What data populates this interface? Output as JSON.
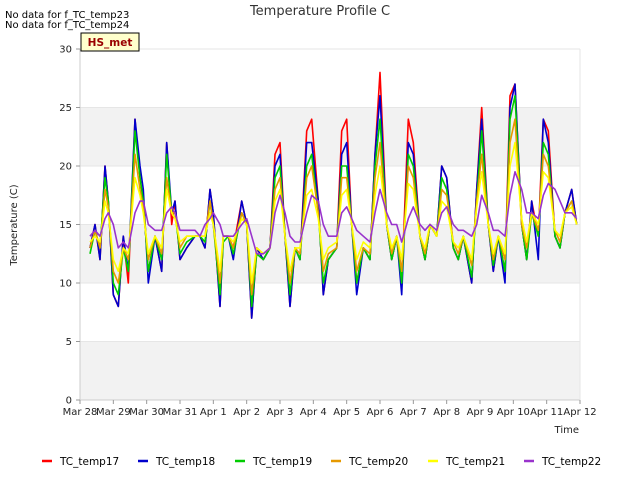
{
  "chart_data": {
    "type": "line",
    "title": "Temperature Profile C",
    "xlabel": "Time",
    "ylabel": "Temperature (C)",
    "ylim": [
      0,
      30
    ],
    "yticks": [
      0,
      5,
      10,
      15,
      20,
      25,
      30
    ],
    "xlim": [
      0,
      15
    ],
    "xticks": [
      {
        "x": 0,
        "label": "Mar 28"
      },
      {
        "x": 1,
        "label": "Mar 29"
      },
      {
        "x": 2,
        "label": "Mar 30"
      },
      {
        "x": 3,
        "label": "Mar 31"
      },
      {
        "x": 4,
        "label": "Apr 1"
      },
      {
        "x": 5,
        "label": "Apr 2"
      },
      {
        "x": 6,
        "label": "Apr 3"
      },
      {
        "x": 7,
        "label": "Apr 4"
      },
      {
        "x": 8,
        "label": "Apr 5"
      },
      {
        "x": 9,
        "label": "Apr 6"
      },
      {
        "x": 10,
        "label": "Apr 7"
      },
      {
        "x": 11,
        "label": "Apr 8"
      },
      {
        "x": 12,
        "label": "Apr 9"
      },
      {
        "x": 13,
        "label": "Apr 10"
      },
      {
        "x": 14,
        "label": "Apr 11"
      },
      {
        "x": 15,
        "label": "Apr 12"
      }
    ],
    "grid": "horizontal bands",
    "legend_position": "bottom",
    "no_data_messages": [
      "No data for f_TC_temp23",
      "No data for f_TC_temp24"
    ],
    "annotation_label": "HS_met",
    "series": [
      {
        "name": "TC_temp17",
        "color": "#ff0000",
        "x": [
          0.3,
          0.45,
          0.6,
          0.75,
          0.85,
          1.0,
          1.15,
          1.3,
          1.45,
          1.65,
          1.8,
          1.9,
          2.05,
          2.25,
          2.45,
          2.6,
          2.75,
          2.85,
          3.0,
          3.2,
          3.45,
          3.6,
          3.75,
          3.9,
          4.0,
          4.2,
          4.3,
          4.45,
          4.6,
          4.85,
          5.0,
          5.15,
          5.3,
          5.5,
          5.7,
          5.85,
          6.0,
          6.15,
          6.3,
          6.45,
          6.6,
          6.8,
          6.95,
          7.15,
          7.3,
          7.45,
          7.7,
          7.85,
          8.0,
          8.15,
          8.3,
          8.5,
          8.7,
          8.85,
          9.0,
          9.2,
          9.35,
          9.5,
          9.65,
          9.85,
          10.0,
          10.2,
          10.35,
          10.5,
          10.7,
          10.85,
          11.0,
          11.2,
          11.35,
          11.5,
          11.75,
          11.9,
          12.05,
          12.25,
          12.4,
          12.55,
          12.75,
          12.9,
          13.05,
          13.25,
          13.4,
          13.55,
          13.75,
          13.9,
          14.05,
          14.25,
          14.4,
          14.55,
          14.75,
          14.9
        ],
        "y": [
          13,
          15,
          12,
          20,
          17,
          9,
          8,
          14,
          10,
          24,
          19,
          17,
          11,
          14,
          11,
          22,
          15,
          17,
          12,
          13,
          14,
          14,
          13,
          18,
          16,
          8,
          14,
          14,
          13,
          17,
          15,
          7,
          13,
          12,
          13,
          21,
          22,
          14,
          8,
          13,
          12,
          23,
          24,
          17,
          9,
          12,
          13,
          23,
          24,
          15,
          10,
          13,
          12,
          21,
          28,
          15,
          12,
          14,
          10,
          24,
          22,
          14,
          12,
          15,
          14,
          20,
          19,
          13,
          12,
          14,
          10,
          18,
          25,
          15,
          11,
          14,
          11,
          26,
          27,
          15,
          12,
          17,
          14,
          24,
          23,
          14,
          13,
          16,
          18,
          15
        ]
      },
      {
        "name": "TC_temp18",
        "color": "#0000cc",
        "x": [
          0.3,
          0.45,
          0.6,
          0.75,
          0.85,
          1.0,
          1.15,
          1.3,
          1.45,
          1.65,
          1.8,
          1.9,
          2.05,
          2.25,
          2.45,
          2.6,
          2.75,
          2.85,
          3.0,
          3.2,
          3.45,
          3.6,
          3.75,
          3.9,
          4.0,
          4.2,
          4.3,
          4.45,
          4.6,
          4.85,
          5.0,
          5.15,
          5.3,
          5.5,
          5.7,
          5.85,
          6.0,
          6.15,
          6.3,
          6.45,
          6.6,
          6.8,
          6.95,
          7.15,
          7.3,
          7.45,
          7.7,
          7.85,
          8.0,
          8.15,
          8.3,
          8.5,
          8.7,
          8.85,
          9.0,
          9.2,
          9.35,
          9.5,
          9.65,
          9.85,
          10.0,
          10.2,
          10.35,
          10.5,
          10.7,
          10.85,
          11.0,
          11.2,
          11.35,
          11.5,
          11.75,
          11.9,
          12.05,
          12.25,
          12.4,
          12.55,
          12.75,
          12.9,
          13.05,
          13.25,
          13.4,
          13.55,
          13.75,
          13.9,
          14.05,
          14.25,
          14.4,
          14.55,
          14.75,
          14.9
        ],
        "y": [
          13,
          15,
          12,
          20,
          17,
          9,
          8,
          14,
          11,
          24,
          20,
          18,
          10,
          14,
          11,
          22,
          16,
          17,
          12,
          13,
          14,
          14,
          13,
          18,
          16,
          8,
          14,
          14,
          12,
          17,
          15,
          7,
          13,
          12,
          13,
          20,
          21,
          14,
          8,
          13,
          12,
          22,
          22,
          17,
          9,
          12,
          13,
          21,
          22,
          15,
          9,
          13,
          12,
          21,
          26,
          15,
          12,
          14,
          9,
          22,
          21,
          14,
          12,
          15,
          14,
          20,
          19,
          13,
          12,
          14,
          10,
          18,
          24,
          15,
          11,
          14,
          10,
          25,
          27,
          15,
          12,
          17,
          12,
          24,
          22,
          14,
          13,
          16,
          18,
          15
        ]
      },
      {
        "name": "TC_temp19",
        "color": "#00cc00",
        "x": [
          0.3,
          0.45,
          0.6,
          0.75,
          0.85,
          1.0,
          1.15,
          1.3,
          1.45,
          1.65,
          1.8,
          1.9,
          2.05,
          2.25,
          2.45,
          2.6,
          2.75,
          2.85,
          3.0,
          3.2,
          3.45,
          3.6,
          3.75,
          3.9,
          4.0,
          4.2,
          4.3,
          4.45,
          4.6,
          4.85,
          5.0,
          5.15,
          5.3,
          5.5,
          5.7,
          5.85,
          6.0,
          6.15,
          6.3,
          6.45,
          6.6,
          6.8,
          6.95,
          7.15,
          7.3,
          7.45,
          7.7,
          7.85,
          8.0,
          8.15,
          8.3,
          8.5,
          8.7,
          8.85,
          9.0,
          9.2,
          9.35,
          9.5,
          9.65,
          9.85,
          10.0,
          10.2,
          10.35,
          10.5,
          10.7,
          10.85,
          11.0,
          11.2,
          11.35,
          11.5,
          11.75,
          11.9,
          12.05,
          12.25,
          12.4,
          12.55,
          12.75,
          12.9,
          13.05,
          13.25,
          13.4,
          13.55,
          13.75,
          13.9,
          14.05,
          14.25,
          14.4,
          14.55,
          14.75,
          14.9
        ],
        "y": [
          12.5,
          14.5,
          13,
          19,
          17,
          10,
          9,
          13,
          11,
          23,
          19,
          17,
          11,
          14,
          12,
          21,
          16,
          16,
          12.5,
          13.5,
          14,
          14,
          13.5,
          17,
          15,
          9,
          13.5,
          14,
          12.5,
          16,
          15,
          8,
          12.5,
          12,
          13,
          19,
          20,
          14,
          9,
          13,
          12,
          20,
          21,
          16,
          10,
          12,
          13,
          20,
          20,
          15,
          10,
          13,
          12,
          20,
          24,
          15,
          12,
          14,
          10,
          21,
          20,
          14,
          12,
          15,
          14,
          19,
          18,
          13,
          12,
          14,
          10.5,
          17,
          23,
          15,
          11.5,
          14,
          11,
          24,
          26,
          15,
          12,
          16,
          14,
          22,
          21,
          14,
          13,
          16,
          17,
          15
        ]
      },
      {
        "name": "TC_temp20",
        "color": "#e69900",
        "x": [
          0.3,
          0.45,
          0.6,
          0.75,
          0.85,
          1.0,
          1.15,
          1.3,
          1.45,
          1.65,
          1.8,
          1.9,
          2.05,
          2.25,
          2.45,
          2.6,
          2.75,
          2.85,
          3.0,
          3.2,
          3.45,
          3.6,
          3.75,
          3.9,
          4.0,
          4.2,
          4.3,
          4.45,
          4.6,
          4.85,
          5.0,
          5.15,
          5.3,
          5.5,
          5.7,
          5.85,
          6.0,
          6.15,
          6.3,
          6.45,
          6.6,
          6.8,
          6.95,
          7.15,
          7.3,
          7.45,
          7.7,
          7.85,
          8.0,
          8.15,
          8.3,
          8.5,
          8.7,
          8.85,
          9.0,
          9.2,
          9.35,
          9.5,
          9.65,
          9.85,
          10.0,
          10.2,
          10.35,
          10.5,
          10.7,
          10.85,
          11.0,
          11.2,
          11.35,
          11.5,
          11.75,
          11.9,
          12.05,
          12.25,
          12.4,
          12.55,
          12.75,
          12.9,
          13.05,
          13.25,
          13.4,
          13.55,
          13.75,
          13.9,
          14.05,
          14.25,
          14.4,
          14.55,
          14.75,
          14.9
        ],
        "y": [
          13,
          14.5,
          13,
          18,
          16.5,
          11,
          10,
          13,
          12,
          21,
          18,
          16.5,
          12,
          14,
          12.5,
          19,
          16,
          16,
          13,
          14,
          14,
          14,
          14,
          17,
          15,
          10,
          14,
          14,
          13,
          16,
          15,
          9,
          13,
          12.5,
          13,
          18,
          19,
          14,
          10,
          13,
          12.5,
          19,
          20,
          16,
          11,
          12.5,
          13,
          19,
          19,
          15,
          11,
          13,
          12.5,
          19,
          22,
          15,
          12.5,
          14,
          11,
          20,
          19,
          14,
          12.5,
          15,
          14,
          18,
          17.5,
          13.5,
          12.5,
          14,
          11.5,
          17,
          21,
          15,
          12,
          14,
          12,
          22,
          24,
          15,
          13,
          16,
          14.5,
          21,
          20,
          14.5,
          13.5,
          16,
          17,
          15
        ]
      },
      {
        "name": "TC_temp21",
        "color": "#ffff00",
        "x": [
          0.3,
          0.45,
          0.6,
          0.75,
          0.85,
          1.0,
          1.15,
          1.3,
          1.45,
          1.65,
          1.8,
          1.9,
          2.05,
          2.25,
          2.45,
          2.6,
          2.75,
          2.85,
          3.0,
          3.2,
          3.45,
          3.6,
          3.75,
          3.9,
          4.0,
          4.2,
          4.3,
          4.45,
          4.6,
          4.85,
          5.0,
          5.15,
          5.3,
          5.5,
          5.7,
          5.85,
          6.0,
          6.15,
          6.3,
          6.45,
          6.6,
          6.8,
          6.95,
          7.15,
          7.3,
          7.45,
          7.7,
          7.85,
          8.0,
          8.15,
          8.3,
          8.5,
          8.7,
          8.85,
          9.0,
          9.2,
          9.35,
          9.5,
          9.65,
          9.85,
          10.0,
          10.2,
          10.35,
          10.5,
          10.7,
          10.85,
          11.0,
          11.2,
          11.35,
          11.5,
          11.75,
          11.9,
          12.05,
          12.25,
          12.4,
          12.55,
          12.75,
          12.9,
          13.05,
          13.25,
          13.4,
          13.55,
          13.75,
          13.9,
          14.05,
          14.25,
          14.4,
          14.55,
          14.75,
          14.9
        ],
        "y": [
          13.5,
          14,
          13.5,
          17,
          16,
          12,
          11,
          13,
          12.5,
          19,
          17.5,
          16,
          12.5,
          14,
          13,
          18,
          16,
          15.5,
          13.5,
          14,
          14,
          14,
          14,
          16,
          15,
          11,
          14,
          14,
          13.5,
          15.5,
          15,
          10,
          13,
          12.5,
          13,
          17,
          18,
          14,
          11,
          13,
          13,
          17.5,
          18,
          15.5,
          12,
          13,
          13.5,
          17.5,
          18,
          15,
          12,
          13.5,
          13,
          17.5,
          20,
          15,
          13,
          14,
          12,
          18.5,
          18,
          14,
          13,
          15,
          14,
          17,
          16.5,
          13.5,
          13,
          14,
          12,
          16.5,
          19.5,
          15,
          12.5,
          14,
          12.5,
          20,
          22,
          15.5,
          13.5,
          16,
          15,
          19.5,
          19,
          14.5,
          14,
          16,
          16.5,
          15
        ]
      },
      {
        "name": "TC_temp22",
        "color": "#9933cc",
        "x": [
          0.3,
          0.45,
          0.6,
          0.75,
          0.85,
          1.0,
          1.15,
          1.3,
          1.45,
          1.65,
          1.8,
          1.9,
          2.05,
          2.25,
          2.45,
          2.6,
          2.75,
          2.85,
          3.0,
          3.2,
          3.45,
          3.6,
          3.75,
          3.9,
          4.0,
          4.2,
          4.3,
          4.45,
          4.6,
          4.85,
          5.0,
          5.15,
          5.3,
          5.5,
          5.7,
          5.85,
          6.0,
          6.15,
          6.3,
          6.45,
          6.6,
          6.8,
          6.95,
          7.15,
          7.3,
          7.45,
          7.7,
          7.85,
          8.0,
          8.15,
          8.3,
          8.5,
          8.7,
          8.85,
          9.0,
          9.2,
          9.35,
          9.5,
          9.65,
          9.85,
          10.0,
          10.2,
          10.35,
          10.5,
          10.7,
          10.85,
          11.0,
          11.2,
          11.35,
          11.5,
          11.75,
          11.9,
          12.05,
          12.25,
          12.4,
          12.55,
          12.75,
          12.9,
          13.05,
          13.25,
          13.4,
          13.55,
          13.75,
          13.9,
          14.05,
          14.25,
          14.4,
          14.55,
          14.75,
          14.9
        ],
        "y": [
          14,
          14.5,
          14,
          15.5,
          16,
          15,
          13,
          13.5,
          13,
          16,
          17,
          17,
          15,
          14.5,
          14.5,
          16,
          16.5,
          16,
          14.5,
          14.5,
          14.5,
          14,
          15,
          15.5,
          16,
          15,
          14,
          14,
          14,
          15,
          15.5,
          14,
          12.5,
          12.5,
          13,
          16,
          17.5,
          16,
          14,
          13.5,
          13.5,
          16,
          17.5,
          17,
          15,
          14,
          14,
          16,
          16.5,
          15.5,
          14.5,
          14,
          13.5,
          16,
          18,
          16,
          15,
          15,
          13.5,
          15.5,
          16.5,
          15,
          14.5,
          15,
          14.5,
          16,
          16.5,
          15,
          14.5,
          14.5,
          14,
          15,
          17.5,
          16,
          14.5,
          14.5,
          14,
          17.5,
          19.5,
          18,
          16,
          16,
          15.5,
          17.5,
          18.5,
          18,
          17,
          16,
          16,
          15.5
        ]
      }
    ]
  }
}
